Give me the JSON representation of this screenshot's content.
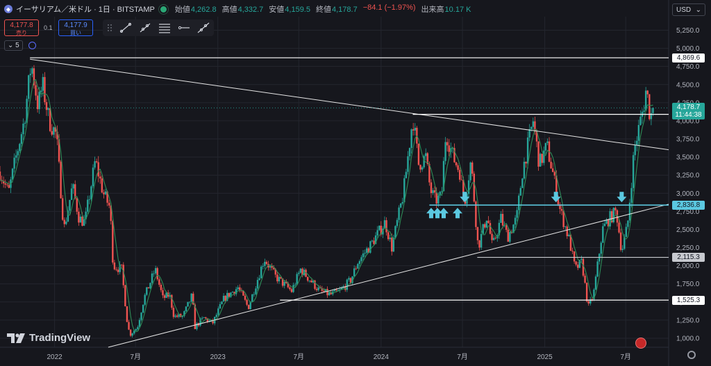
{
  "header": {
    "symbol": "イーサリアム／米ドル · 1日 · BITSTAMP",
    "ohlc": [
      {
        "key": "始値",
        "value": "4,262.8"
      },
      {
        "key": "高値",
        "value": "4,332.7"
      },
      {
        "key": "安値",
        "value": "4,159.5"
      },
      {
        "key": "終値",
        "value": "4,178.7"
      },
      {
        "key": "",
        "value": "−84.1 (−1.97%)"
      },
      {
        "key": "出来高",
        "value": "10.17 K"
      }
    ],
    "currency": "USD"
  },
  "trade": {
    "sell_price": "4,177.8",
    "sell_label": "売り",
    "spread": "0.1",
    "buy_price": "4,177.9",
    "buy_label": "買い"
  },
  "indicator": {
    "value": "5"
  },
  "brand": "TradingView",
  "colors": {
    "up": "#26a69a",
    "down": "#ef5350",
    "ma": "#2e8b57",
    "level_cyan": "#5bc8e0",
    "background": "#16171d"
  },
  "chart_data": {
    "type": "candlestick",
    "y_axis": {
      "range": [
        875,
        5437
      ],
      "ticks": [
        1000,
        1250,
        1500,
        1750,
        2000,
        2250,
        2500,
        2750,
        3000,
        3250,
        3500,
        3750,
        4000,
        4250,
        4500,
        4750,
        5000,
        5250
      ],
      "tick_labels": [
        "1,000.0",
        "1,250.0",
        "1,500.0",
        "1,750.0",
        "2,000.0",
        "2,250.0",
        "2,500.0",
        "2,750.0",
        "3,000.0",
        "3,250.0",
        "3,500.0",
        "3,750.0",
        "4,000.0",
        "4,250.0",
        "4,500.0",
        "4,750.0",
        "5,000.0",
        "5,250.0"
      ]
    },
    "x_axis": {
      "range": [
        "2021-09-01",
        "2025-10-05"
      ],
      "ticks": [
        "2022-01-01",
        "2022-07-01",
        "2023-01-01",
        "2023-07-01",
        "2024-01-01",
        "2024-07-01",
        "2025-01-01",
        "2025-07-01"
      ],
      "tick_labels": [
        "2022",
        "7月",
        "2023",
        "7月",
        "2024",
        "7月",
        "2025",
        "7月"
      ]
    },
    "price_path": [
      [
        "2021-09-01",
        3300
      ],
      [
        "2021-09-20",
        3000
      ],
      [
        "2021-10-05",
        3450
      ],
      [
        "2021-10-25",
        4000
      ],
      [
        "2021-11-10",
        4800
      ],
      [
        "2021-11-25",
        4200
      ],
      [
        "2021-12-05",
        4500
      ],
      [
        "2021-12-20",
        4000
      ],
      [
        "2022-01-05",
        3800
      ],
      [
        "2022-01-22",
        2500
      ],
      [
        "2022-02-10",
        3100
      ],
      [
        "2022-02-25",
        2650
      ],
      [
        "2022-03-10",
        2600
      ],
      [
        "2022-04-02",
        3450
      ],
      [
        "2022-04-20",
        3000
      ],
      [
        "2022-05-05",
        2800
      ],
      [
        "2022-05-12",
        2000
      ],
      [
        "2022-05-31",
        1950
      ],
      [
        "2022-06-13",
        1200
      ],
      [
        "2022-06-18",
        1050
      ],
      [
        "2022-07-05",
        1150
      ],
      [
        "2022-07-20",
        1550
      ],
      [
        "2022-08-14",
        1950
      ],
      [
        "2022-08-31",
        1550
      ],
      [
        "2022-09-15",
        1600
      ],
      [
        "2022-09-25",
        1300
      ],
      [
        "2022-10-15",
        1300
      ],
      [
        "2022-11-05",
        1600
      ],
      [
        "2022-11-10",
        1150
      ],
      [
        "2022-12-01",
        1280
      ],
      [
        "2022-12-20",
        1200
      ],
      [
        "2023-01-15",
        1550
      ],
      [
        "2023-02-15",
        1700
      ],
      [
        "2023-03-10",
        1420
      ],
      [
        "2023-04-15",
        2100
      ],
      [
        "2023-05-10",
        1850
      ],
      [
        "2023-06-15",
        1650
      ],
      [
        "2023-07-05",
        1950
      ],
      [
        "2023-08-17",
        1650
      ],
      [
        "2023-09-10",
        1600
      ],
      [
        "2023-10-01",
        1650
      ],
      [
        "2023-10-25",
        1800
      ],
      [
        "2023-11-10",
        2050
      ],
      [
        "2023-12-10",
        2300
      ],
      [
        "2024-01-10",
        2600
      ],
      [
        "2024-01-25",
        2250
      ],
      [
        "2024-02-20",
        3000
      ],
      [
        "2024-03-12",
        4050
      ],
      [
        "2024-03-25",
        3400
      ],
      [
        "2024-04-10",
        3500
      ],
      [
        "2024-04-20",
        3050
      ],
      [
        "2024-05-01",
        2900
      ],
      [
        "2024-05-15",
        2950
      ],
      [
        "2024-05-25",
        3850
      ],
      [
        "2024-06-10",
        3500
      ],
      [
        "2024-06-25",
        3300
      ],
      [
        "2024-07-05",
        2850
      ],
      [
        "2024-07-20",
        3450
      ],
      [
        "2024-08-05",
        2250
      ],
      [
        "2024-08-25",
        2700
      ],
      [
        "2024-09-06",
        2250
      ],
      [
        "2024-09-25",
        2650
      ],
      [
        "2024-10-10",
        2400
      ],
      [
        "2024-10-30",
        2650
      ],
      [
        "2024-11-12",
        3300
      ],
      [
        "2024-12-06",
        4000
      ],
      [
        "2024-12-20",
        3400
      ],
      [
        "2025-01-06",
        3650
      ],
      [
        "2025-01-20",
        3250
      ],
      [
        "2025-02-03",
        2800
      ],
      [
        "2025-02-25",
        2350
      ],
      [
        "2025-03-10",
        1950
      ],
      [
        "2025-03-25",
        2050
      ],
      [
        "2025-04-08",
        1420
      ],
      [
        "2025-04-20",
        1600
      ],
      [
        "2025-05-10",
        2500
      ],
      [
        "2025-05-25",
        2650
      ],
      [
        "2025-06-10",
        2750
      ],
      [
        "2025-06-22",
        2200
      ],
      [
        "2025-07-05",
        2550
      ],
      [
        "2025-07-20",
        3600
      ],
      [
        "2025-08-10",
        4200
      ],
      [
        "2025-08-16",
        4450
      ],
      [
        "2025-08-25",
        4050
      ],
      [
        "2025-09-01",
        4178.7
      ]
    ],
    "trendlines": [
      {
        "from": [
          "2021-11-07",
          4850
        ],
        "to": [
          "2025-10-05",
          3600
        ]
      },
      {
        "from": [
          "2022-05-01",
          875
        ],
        "to": [
          "2025-10-05",
          2850
        ]
      }
    ],
    "levels": [
      {
        "value": 4869.6,
        "label": "4,869.6",
        "from": "2021-11-07",
        "style": "white"
      },
      {
        "value": 4089.5,
        "label": "4,089.5",
        "from": "2024-03-12",
        "style": "white"
      },
      {
        "value": 2836.8,
        "label": "2,836.8",
        "from": "2024-04-18",
        "style": "cyan"
      },
      {
        "value": 2115.3,
        "label": "2,115.3",
        "from": "2024-08-03",
        "style": "gray"
      },
      {
        "value": 1525.3,
        "label": "1,525.3",
        "from": "2023-05-20",
        "style": "white"
      }
    ],
    "current_price": {
      "value": 4178.7,
      "label": "4,178.7",
      "countdown": "11:44:38"
    },
    "arrows": [
      {
        "date": "2024-04-22",
        "dir": "up"
      },
      {
        "date": "2024-05-06",
        "dir": "up"
      },
      {
        "date": "2024-05-20",
        "dir": "up"
      },
      {
        "date": "2024-06-20",
        "dir": "up"
      },
      {
        "date": "2024-07-06",
        "dir": "down"
      },
      {
        "date": "2025-01-26",
        "dir": "down"
      },
      {
        "date": "2025-06-22",
        "dir": "down"
      }
    ]
  }
}
